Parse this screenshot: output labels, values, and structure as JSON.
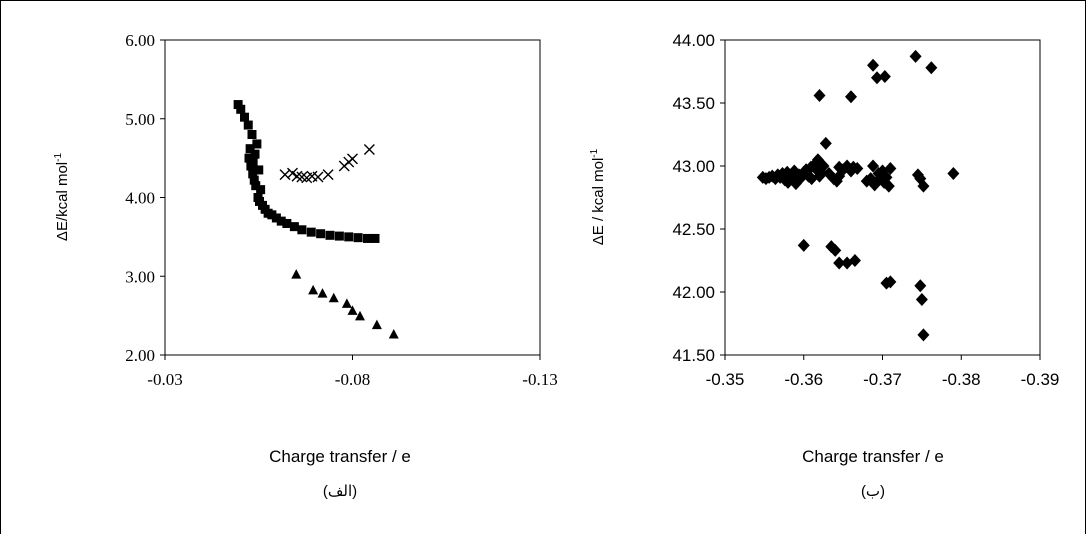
{
  "chart_data": [
    {
      "type": "scatter",
      "title": "",
      "xlabel": "Charge transfer / e",
      "ylabel": "ΔE/kcal mol",
      "ylabel_sup": "-1",
      "caption": "(الف)",
      "xlim": [
        -0.03,
        -0.13
      ],
      "ylim": [
        2.0,
        6.0
      ],
      "x_ticks": [
        "-0.03",
        "-0.08",
        "-0.13"
      ],
      "y_ticks": [
        "2.00",
        "3.00",
        "4.00",
        "5.00",
        "6.00"
      ],
      "grid": false,
      "legend": "none",
      "series": [
        {
          "marker": "square",
          "x": [
            -0.0495,
            -0.0502,
            -0.0512,
            -0.0522,
            -0.0532,
            -0.0527,
            -0.0524,
            -0.0529,
            -0.0534,
            -0.0538,
            -0.0542,
            -0.0535,
            -0.054,
            -0.0545,
            -0.055,
            -0.0555,
            -0.0548,
            -0.0552,
            -0.056,
            -0.0567,
            -0.0575,
            -0.0585,
            -0.0597,
            -0.061,
            -0.0625,
            -0.0645,
            -0.0665,
            -0.069,
            -0.0715,
            -0.074,
            -0.0765,
            -0.079,
            -0.0815,
            -0.084,
            -0.086
          ],
          "y": [
            5.18,
            5.12,
            5.02,
            4.92,
            4.8,
            4.62,
            4.5,
            4.4,
            4.3,
            4.22,
            4.15,
            4.45,
            4.55,
            4.68,
            4.35,
            4.1,
            4.0,
            3.95,
            3.9,
            3.85,
            3.8,
            3.78,
            3.74,
            3.7,
            3.67,
            3.63,
            3.59,
            3.56,
            3.54,
            3.52,
            3.51,
            3.5,
            3.49,
            3.48,
            3.48
          ]
        },
        {
          "marker": "cross",
          "x": [
            -0.062,
            -0.064,
            -0.0652,
            -0.0665,
            -0.0678,
            -0.0692,
            -0.0708,
            -0.0735,
            -0.0778,
            -0.079,
            -0.08,
            -0.0845
          ],
          "y": [
            4.29,
            4.31,
            4.27,
            4.26,
            4.25,
            4.27,
            4.26,
            4.29,
            4.4,
            4.45,
            4.49,
            4.61
          ]
        },
        {
          "marker": "triangle",
          "x": [
            -0.065,
            -0.0695,
            -0.072,
            -0.075,
            -0.0785,
            -0.08,
            -0.082,
            -0.0865,
            -0.091
          ],
          "y": [
            3.02,
            2.82,
            2.78,
            2.72,
            2.65,
            2.56,
            2.49,
            2.38,
            2.26
          ]
        }
      ]
    },
    {
      "type": "scatter",
      "title": "",
      "xlabel": "Charge transfer / e",
      "ylabel": "ΔE / kcal mol",
      "ylabel_sup": "-1",
      "caption": "(ب)",
      "xlim": [
        -0.35,
        -0.39
      ],
      "ylim": [
        41.5,
        44.0
      ],
      "x_ticks": [
        "-0.35",
        "-0.36",
        "-0.37",
        "-0.38",
        "-0.39"
      ],
      "y_ticks": [
        "41.50",
        "42.00",
        "42.50",
        "43.00",
        "43.50",
        "44.00"
      ],
      "grid": false,
      "legend": "none",
      "series": [
        {
          "marker": "diamond",
          "x": [
            -0.3548,
            -0.3552,
            -0.3556,
            -0.356,
            -0.3564,
            -0.3567,
            -0.357,
            -0.3573,
            -0.3576,
            -0.3579,
            -0.3582,
            -0.3585,
            -0.3588,
            -0.3591,
            -0.3594,
            -0.3597,
            -0.36,
            -0.3603,
            -0.3606,
            -0.3609,
            -0.3612,
            -0.3615,
            -0.3618,
            -0.3622,
            -0.358,
            -0.359,
            -0.361,
            -0.362,
            -0.3618,
            -0.3625,
            -0.3632,
            -0.3638,
            -0.3642,
            -0.3645,
            -0.365,
            -0.3655,
            -0.3645,
            -0.366,
            -0.3663,
            -0.3668,
            -0.368,
            -0.3685,
            -0.369,
            -0.3695,
            -0.37,
            -0.3705,
            -0.371,
            -0.3688,
            -0.3695,
            -0.3702,
            -0.3708,
            -0.3745,
            -0.3748,
            -0.3752,
            -0.379,
            -0.362,
            -0.3628,
            -0.366,
            -0.3688,
            -0.3693,
            -0.3703,
            -0.3742,
            -0.3762,
            -0.36,
            -0.3635,
            -0.364,
            -0.3645,
            -0.3655,
            -0.3665,
            -0.3705,
            -0.371,
            -0.3748,
            -0.375,
            -0.3752
          ],
          "y": [
            42.91,
            42.9,
            42.91,
            42.92,
            42.9,
            42.93,
            42.91,
            42.94,
            42.89,
            42.95,
            42.92,
            42.9,
            42.96,
            42.88,
            42.93,
            42.91,
            42.95,
            42.97,
            42.92,
            42.99,
            43.0,
            42.98,
            43.05,
            42.95,
            42.87,
            42.86,
            42.9,
            42.92,
            42.96,
            43.0,
            42.94,
            42.9,
            42.88,
            42.92,
            42.97,
            43.0,
            42.99,
            42.96,
            42.99,
            42.98,
            42.88,
            42.9,
            42.85,
            42.89,
            42.96,
            42.91,
            42.98,
            43.0,
            42.94,
            42.87,
            42.84,
            42.93,
            42.9,
            42.84,
            42.94,
            43.56,
            43.18,
            43.55,
            43.8,
            43.7,
            43.71,
            43.87,
            43.78,
            42.37,
            42.36,
            42.33,
            42.23,
            42.23,
            42.25,
            42.07,
            42.08,
            42.05,
            41.94,
            41.66
          ]
        }
      ]
    }
  ]
}
